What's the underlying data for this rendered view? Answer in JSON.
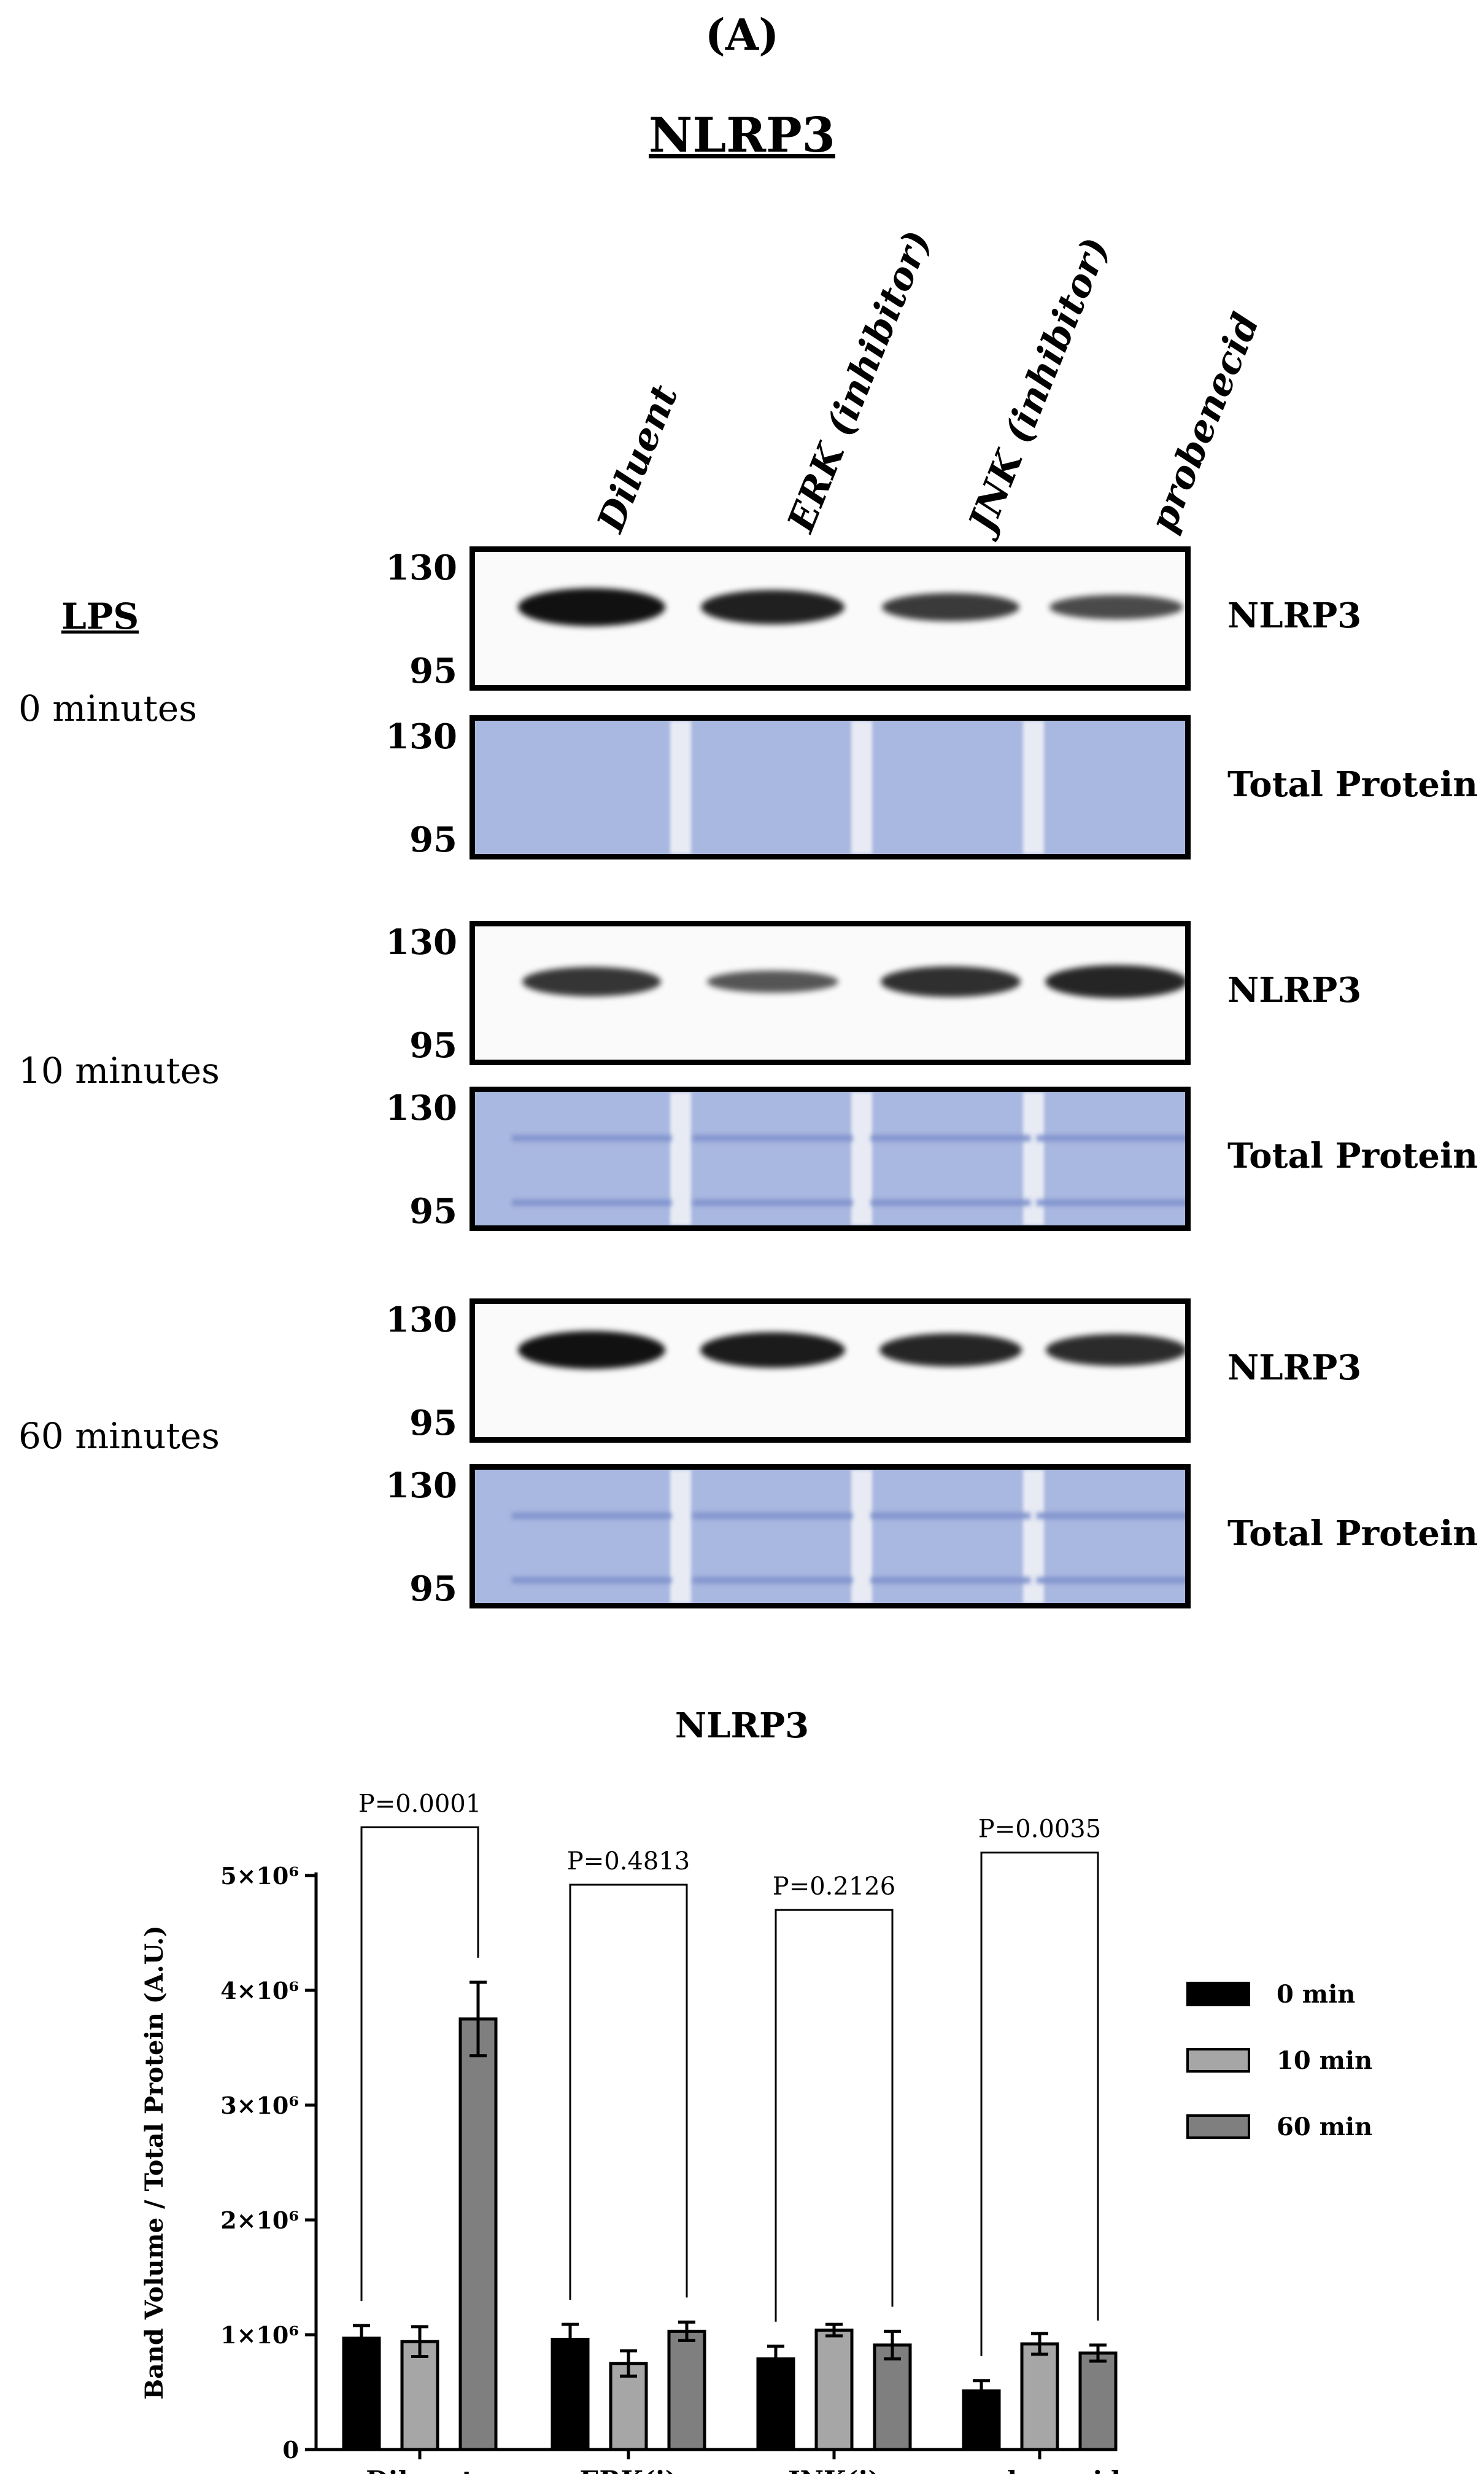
{
  "panel_label": "(A)",
  "blot_title": "NLRP3",
  "lanes": [
    "Diluent",
    "ERK (inhibitor)",
    "JNK (inhibitor)",
    "probenecid"
  ],
  "lps_label": "LPS",
  "timepoints": [
    {
      "label": "0 minutes",
      "nlrp3_band_level": [
        1.0,
        0.85,
        0.6,
        0.45
      ],
      "faint_bands": false
    },
    {
      "label": "10 minutes",
      "nlrp3_band_level": [
        0.65,
        0.35,
        0.7,
        0.8
      ],
      "faint_bands": true
    },
    {
      "label": "60 minutes",
      "nlrp3_band_level": [
        1.0,
        0.9,
        0.8,
        0.75
      ],
      "faint_bands": true
    }
  ],
  "mw_markers": {
    "upper": "130",
    "lower": "95"
  },
  "blot_names": {
    "target": "NLRP3",
    "loading": "Total Protein"
  },
  "chart_data": {
    "type": "bar",
    "title": "NLRP3",
    "ylabel": "Band Volume / Total Protein (A.U.)",
    "xlabel": "",
    "ylim": [
      0,
      5000000
    ],
    "yticks": [
      {
        "value": 0,
        "label": "0"
      },
      {
        "value": 1000000,
        "label": "1×10⁶"
      },
      {
        "value": 2000000,
        "label": "2×10⁶"
      },
      {
        "value": 3000000,
        "label": "3×10⁶"
      },
      {
        "value": 4000000,
        "label": "4×10⁶"
      },
      {
        "value": 5000000,
        "label": "5×10⁶"
      }
    ],
    "categories": [
      "Diluent",
      "ERK(i)",
      "JNK(i)",
      "probenecid"
    ],
    "series": [
      {
        "name": "0 min",
        "color": "#000000",
        "values": [
          970000,
          960000,
          790000,
          510000
        ],
        "errors": [
          110000,
          130000,
          110000,
          90000
        ]
      },
      {
        "name": "10 min",
        "color": "#a6a6a6",
        "values": [
          940000,
          750000,
          1040000,
          920000
        ],
        "errors": [
          130000,
          110000,
          50000,
          90000
        ]
      },
      {
        "name": "60 min",
        "color": "#7f7f7f",
        "values": [
          3750000,
          1030000,
          910000,
          840000
        ],
        "errors": [
          320000,
          80000,
          120000,
          70000
        ]
      }
    ],
    "comparisons": [
      {
        "category": "Diluent",
        "label": "P=0.0001",
        "top": 5420000
      },
      {
        "category": "ERK(i)",
        "label": "P=0.4813",
        "top": 4920000
      },
      {
        "category": "JNK(i)",
        "label": "P=0.2126",
        "top": 4700000
      },
      {
        "category": "probenecid",
        "label": "P=0.0035",
        "top": 5200000
      }
    ],
    "legend_position": "right"
  }
}
